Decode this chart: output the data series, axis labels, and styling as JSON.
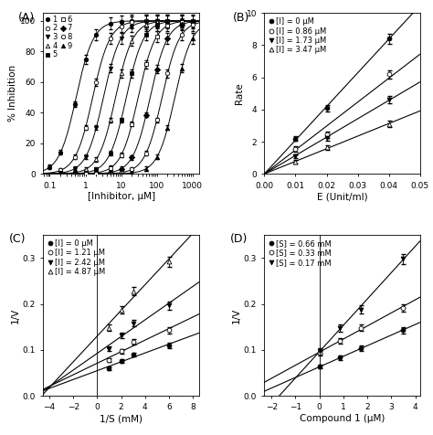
{
  "panel_A": {
    "label": "(A)",
    "xlabel": "[Inhibitor, μM]",
    "ylabel": "% Inhibition",
    "ylim": [
      0,
      105
    ],
    "xlim_log": [
      -1.15,
      3.18
    ],
    "curves": [
      {
        "name": "1",
        "IC50": 0.55,
        "Hill": 1.8,
        "marker": "o",
        "filled": true
      },
      {
        "name": "2",
        "IC50": 1.6,
        "Hill": 1.8,
        "marker": "o",
        "filled": false
      },
      {
        "name": "3",
        "IC50": 3.2,
        "Hill": 1.8,
        "marker": "v",
        "filled": true
      },
      {
        "name": "4",
        "IC50": 7.0,
        "Hill": 1.8,
        "marker": "^",
        "filled": false
      },
      {
        "name": "5",
        "IC50": 14.0,
        "Hill": 1.8,
        "marker": "s",
        "filled": true
      },
      {
        "name": "6",
        "IC50": 30.0,
        "Hill": 1.8,
        "marker": "s",
        "filled": false
      },
      {
        "name": "7",
        "IC50": 65.0,
        "Hill": 1.8,
        "marker": "D",
        "filled": true
      },
      {
        "name": "8",
        "IC50": 140.0,
        "Hill": 1.8,
        "marker": "o",
        "filled": false
      },
      {
        "name": "9",
        "IC50": 320.0,
        "Hill": 1.8,
        "marker": "^",
        "filled": true
      }
    ]
  },
  "panel_B": {
    "label": "(B)",
    "xlabel": "E (Unit/ml)",
    "ylabel": "Rate",
    "ylim": [
      0,
      10
    ],
    "xlim": [
      0.0,
      0.05
    ],
    "series": [
      {
        "label": "[I] = 0 μM",
        "marker": "o",
        "filled": true,
        "x": [
          0.01,
          0.02,
          0.04
        ],
        "y": [
          2.2,
          4.1,
          8.4
        ],
        "yerr": [
          0.15,
          0.2,
          0.3
        ]
      },
      {
        "label": "[I] = 0.86 μM",
        "marker": "o",
        "filled": false,
        "x": [
          0.01,
          0.02,
          0.04
        ],
        "y": [
          1.55,
          2.45,
          6.2
        ],
        "yerr": [
          0.15,
          0.2,
          0.25
        ]
      },
      {
        "label": "[I] = 1.73 μM",
        "marker": "v",
        "filled": true,
        "x": [
          0.01,
          0.02,
          0.04
        ],
        "y": [
          1.1,
          2.25,
          4.6
        ],
        "yerr": [
          0.12,
          0.18,
          0.22
        ]
      },
      {
        "label": "[I] = 3.47 μM",
        "marker": "^",
        "filled": false,
        "x": [
          0.01,
          0.02,
          0.04
        ],
        "y": [
          0.75,
          1.65,
          3.1
        ],
        "yerr": [
          0.1,
          0.15,
          0.2
        ]
      }
    ]
  },
  "panel_C": {
    "label": "(C)",
    "xlabel": "1/S (mM)",
    "ylabel": "1/V",
    "ylim": [
      0,
      0.35
    ],
    "xlim": [
      -4.5,
      8.5
    ],
    "yticks": [
      0.0,
      0.1,
      0.2,
      0.3
    ],
    "xticks": [
      -4,
      -2,
      0,
      2,
      4,
      6,
      8
    ],
    "series": [
      {
        "label": "[I] = 0 μM",
        "marker": "o",
        "filled": true,
        "x": [
          1.0,
          2.0,
          3.0,
          6.0
        ],
        "y": [
          0.06,
          0.075,
          0.09,
          0.11
        ],
        "yerr": [
          0.004,
          0.004,
          0.004,
          0.006
        ]
      },
      {
        "label": "[I] = 1.21 μM",
        "marker": "o",
        "filled": false,
        "x": [
          1.0,
          2.0,
          3.0,
          6.0
        ],
        "y": [
          0.078,
          0.097,
          0.117,
          0.143
        ],
        "yerr": [
          0.004,
          0.005,
          0.006,
          0.007
        ]
      },
      {
        "label": "[I] = 2.42 μM",
        "marker": "v",
        "filled": true,
        "x": [
          1.0,
          2.0,
          3.0,
          6.0
        ],
        "y": [
          0.102,
          0.132,
          0.158,
          0.197
        ],
        "yerr": [
          0.005,
          0.006,
          0.007,
          0.009
        ]
      },
      {
        "label": "[I] = 4.87 μM",
        "marker": "^",
        "filled": false,
        "x": [
          1.0,
          2.0,
          3.0,
          6.0
        ],
        "y": [
          0.148,
          0.188,
          0.228,
          0.292
        ],
        "yerr": [
          0.007,
          0.008,
          0.009,
          0.011
        ]
      }
    ]
  },
  "panel_D": {
    "label": "(D)",
    "xlabel": "Compound 1 (μM)",
    "ylabel": "1/V",
    "ylim": [
      0,
      0.35
    ],
    "xlim": [
      -2.3,
      4.2
    ],
    "yticks": [
      0.0,
      0.1,
      0.2,
      0.3
    ],
    "xticks": [
      -2,
      -1,
      0,
      1,
      2,
      3,
      4
    ],
    "series": [
      {
        "label": "[S] = 0.66 mM",
        "marker": "o",
        "filled": true,
        "x": [
          0.0,
          0.86,
          1.73,
          3.47
        ],
        "y": [
          0.063,
          0.083,
          0.103,
          0.143
        ],
        "yerr": [
          0.004,
          0.005,
          0.006,
          0.007
        ]
      },
      {
        "label": "[S] = 0.33 mM",
        "marker": "o",
        "filled": false,
        "x": [
          0.0,
          0.86,
          1.73,
          3.47
        ],
        "y": [
          0.093,
          0.12,
          0.148,
          0.192
        ],
        "yerr": [
          0.005,
          0.006,
          0.007,
          0.008
        ]
      },
      {
        "label": "[S] = 0.17 mM",
        "marker": "v",
        "filled": true,
        "x": [
          0.0,
          0.86,
          1.73,
          3.47
        ],
        "y": [
          0.098,
          0.148,
          0.188,
          0.298
        ],
        "yerr": [
          0.006,
          0.008,
          0.009,
          0.011
        ]
      }
    ]
  },
  "figure_bg": "#ffffff",
  "fontsize_label": 7.5,
  "fontsize_tick": 6.5,
  "fontsize_legend": 6.0,
  "fontsize_panel": 9
}
